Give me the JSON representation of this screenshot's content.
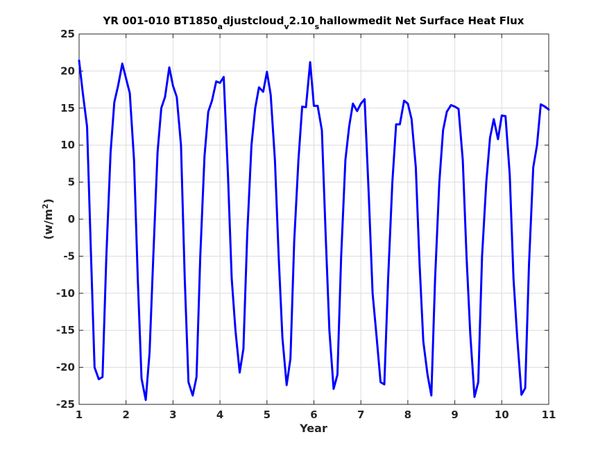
{
  "chart_data": {
    "type": "line",
    "title_parts": [
      "YR 001-010 BT1850",
      "a",
      "djustcloud",
      "v",
      "2.10",
      "s",
      "hallowmedit Net Surface Heat Flux"
    ],
    "xlabel": "Year",
    "ylabel_parts": [
      "(w/m",
      "2",
      ")"
    ],
    "xlim": [
      1,
      11
    ],
    "ylim": [
      -25,
      25
    ],
    "xticks": [
      "1",
      "2",
      "3",
      "4",
      "5",
      "6",
      "7",
      "8",
      "9",
      "10",
      "11"
    ],
    "yticks": [
      "-25",
      "-20",
      "-15",
      "-10",
      "-5",
      "0",
      "5",
      "10",
      "15",
      "20",
      "25"
    ],
    "grid": true,
    "series": [
      {
        "color": "#0000ff",
        "x": [
          1.0,
          1.08,
          1.17,
          1.25,
          1.33,
          1.42,
          1.5,
          1.58,
          1.67,
          1.75,
          1.83,
          1.92,
          2.0,
          2.08,
          2.17,
          2.25,
          2.33,
          2.42,
          2.5,
          2.58,
          2.67,
          2.75,
          2.83,
          2.92,
          3.0,
          3.08,
          3.17,
          3.25,
          3.33,
          3.42,
          3.5,
          3.58,
          3.67,
          3.75,
          3.83,
          3.92,
          4.0,
          4.08,
          4.17,
          4.25,
          4.33,
          4.42,
          4.5,
          4.58,
          4.67,
          4.75,
          4.83,
          4.92,
          5.0,
          5.08,
          5.17,
          5.25,
          5.33,
          5.42,
          5.5,
          5.58,
          5.67,
          5.75,
          5.83,
          5.92,
          6.0,
          6.08,
          6.17,
          6.25,
          6.33,
          6.42,
          6.5,
          6.58,
          6.67,
          6.75,
          6.83,
          6.92,
          7.0,
          7.08,
          7.17,
          7.25,
          7.33,
          7.42,
          7.5,
          7.58,
          7.67,
          7.75,
          7.83,
          7.92,
          8.0,
          8.08,
          8.17,
          8.25,
          8.33,
          8.42,
          8.5,
          8.58,
          8.67,
          8.75,
          8.83,
          8.92,
          9.0,
          9.08,
          9.17,
          9.25,
          9.33,
          9.42,
          9.5,
          9.58,
          9.67,
          9.75,
          9.83,
          9.92,
          10.0,
          10.08,
          10.17,
          10.25,
          10.33,
          10.42,
          10.5,
          10.58,
          10.67,
          10.75,
          10.83,
          10.92,
          11.0
        ],
        "y": [
          21.4,
          17.0,
          12.5,
          -4.0,
          -20.0,
          -21.6,
          -21.3,
          -5.0,
          9.0,
          15.8,
          18.0,
          21.0,
          19.0,
          17.0,
          8.0,
          -8.0,
          -21.5,
          -24.4,
          -18.0,
          -5.0,
          9.0,
          15.0,
          16.5,
          20.5,
          18.0,
          16.5,
          10.0,
          -8.0,
          -22.0,
          -23.8,
          -21.3,
          -5.0,
          8.5,
          14.5,
          16.0,
          18.6,
          18.4,
          19.2,
          6.0,
          -8.0,
          -15.0,
          -20.7,
          -17.5,
          -2.0,
          10.0,
          15.0,
          17.8,
          17.2,
          19.9,
          16.8,
          8.0,
          -5.0,
          -16.0,
          -22.4,
          -18.8,
          -3.0,
          8.0,
          15.2,
          15.1,
          21.2,
          15.3,
          15.3,
          12.0,
          -2.0,
          -15.0,
          -22.9,
          -21.0,
          -5.0,
          8.0,
          12.5,
          15.6,
          14.6,
          15.6,
          16.2,
          3.0,
          -10.0,
          -15.5,
          -22.0,
          -22.3,
          -8.0,
          5.0,
          12.8,
          12.8,
          16.0,
          15.6,
          13.5,
          7.0,
          -6.0,
          -16.5,
          -21.0,
          -23.8,
          -8.0,
          5.0,
          12.0,
          14.5,
          15.4,
          15.2,
          14.9,
          8.0,
          -5.0,
          -15.5,
          -24.0,
          -22.0,
          -5.0,
          5.0,
          11.0,
          13.5,
          10.8,
          14.0,
          13.9,
          6.0,
          -8.0,
          -16.0,
          -23.7,
          -22.8,
          -6.0,
          7.0,
          10.0,
          15.5,
          15.2,
          14.8
        ]
      }
    ]
  }
}
